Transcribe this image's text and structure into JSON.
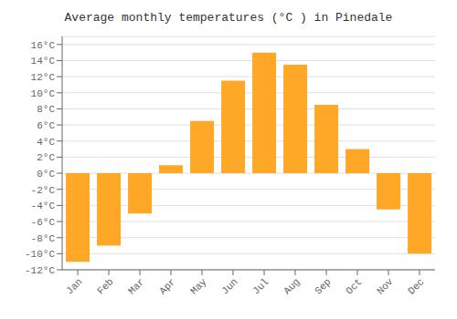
{
  "chart_data": {
    "type": "bar",
    "title": "Average monthly temperatures (°C ) in Pinedale",
    "categories": [
      "Jan",
      "Feb",
      "Mar",
      "Apr",
      "May",
      "Jun",
      "Jul",
      "Aug",
      "Sep",
      "Oct",
      "Nov",
      "Dec"
    ],
    "values": [
      -11,
      -9,
      -5,
      1,
      6.5,
      11.5,
      15,
      13.5,
      8.5,
      3,
      -4.5,
      -10
    ],
    "color": "#FFA726",
    "ylim": [
      -12,
      17
    ],
    "yticks": [
      {
        "value": -12,
        "label": "-12°C"
      },
      {
        "value": -10,
        "label": "-10°C"
      },
      {
        "value": -8,
        "label": "-8°C"
      },
      {
        "value": -6,
        "label": "-6°C"
      },
      {
        "value": -4,
        "label": "-4°C"
      },
      {
        "value": -2,
        "label": "-2°C"
      },
      {
        "value": 0,
        "label": "0°C"
      },
      {
        "value": 2,
        "label": "2°C"
      },
      {
        "value": 4,
        "label": "4°C"
      },
      {
        "value": 6,
        "label": "6°C"
      },
      {
        "value": 8,
        "label": "8°C"
      },
      {
        "value": 10,
        "label": "10°C"
      },
      {
        "value": 12,
        "label": "12°C"
      },
      {
        "value": 14,
        "label": "14°C"
      },
      {
        "value": 16,
        "label": "16°C"
      }
    ],
    "grid": true
  }
}
